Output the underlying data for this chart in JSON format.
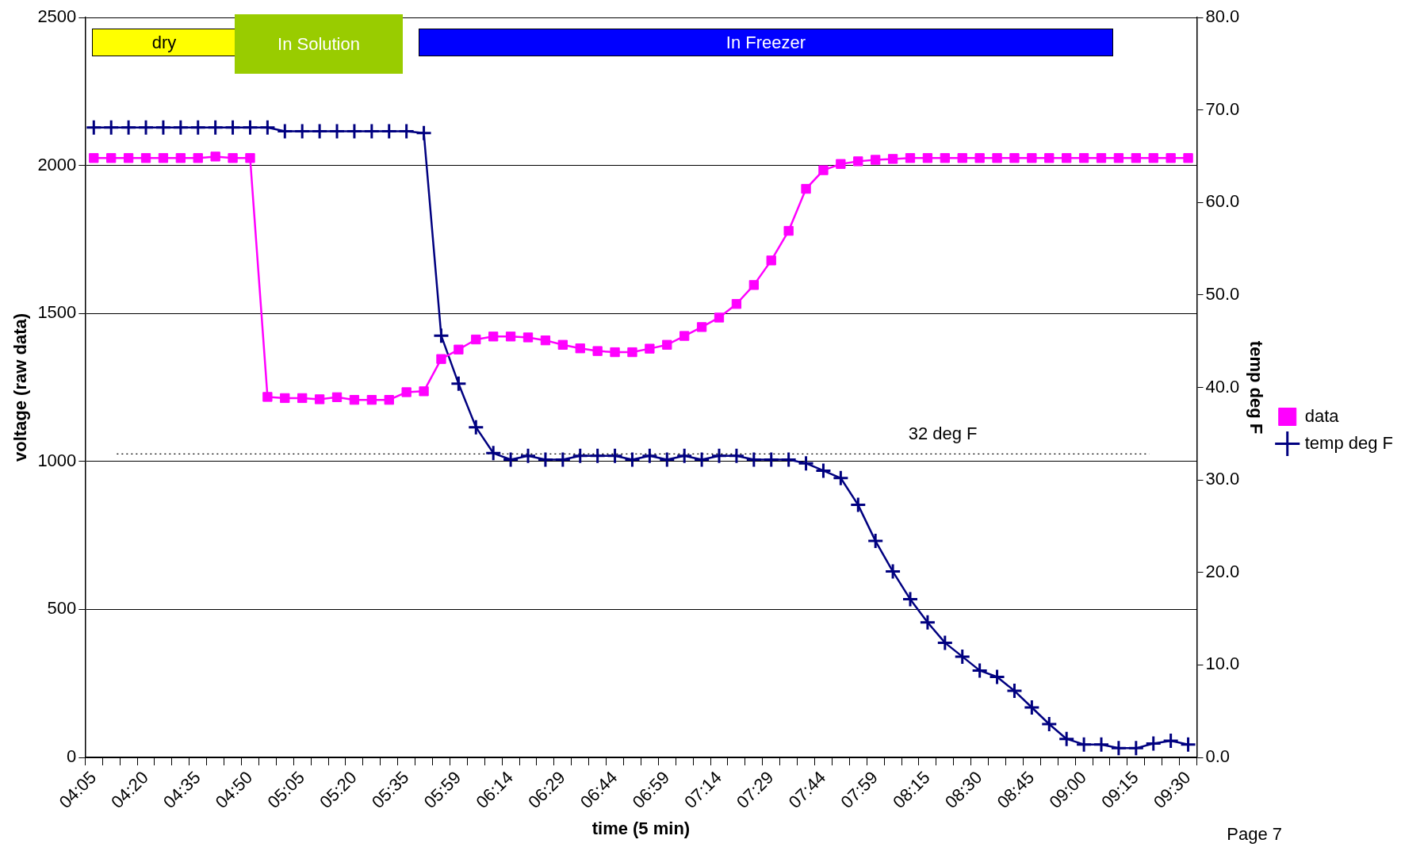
{
  "chart_data": {
    "type": "line",
    "xlabel": "time (5 min)",
    "ylabel": "voltage (raw data)",
    "y2label": "temp deg F",
    "categories": [
      "04:05",
      null,
      null,
      "04:20",
      null,
      null,
      "04:35",
      null,
      null,
      "04:50",
      null,
      null,
      "05:05",
      null,
      null,
      "05:20",
      null,
      null,
      "05:35",
      null,
      null,
      "05:59",
      null,
      null,
      "06:14",
      null,
      null,
      "06:29",
      null,
      null,
      "06:44",
      null,
      null,
      "06:59",
      null,
      null,
      "07:14",
      null,
      null,
      "07:29",
      null,
      null,
      "07:44",
      null,
      null,
      "07:59",
      null,
      null,
      "08:15",
      null,
      null,
      "08:30",
      null,
      null,
      "08:45",
      null,
      null,
      "09:00",
      null,
      null,
      "09:15",
      null,
      null,
      "09:30"
    ],
    "series": [
      {
        "name": "data",
        "color": "#ff00ff",
        "marker": "square",
        "values": [
          2025,
          2025,
          2025,
          2025,
          2025,
          2025,
          2025,
          2030,
          2025,
          2025,
          1218,
          1214,
          1214,
          1210,
          1217,
          1208,
          1208,
          1208,
          1234,
          1237,
          1346,
          1378,
          1412,
          1422,
          1422,
          1419,
          1409,
          1394,
          1382,
          1373,
          1369,
          1369,
          1381,
          1394,
          1424,
          1454,
          1486,
          1532,
          1596,
          1679,
          1779,
          1921,
          1984,
          2005,
          2014,
          2019,
          2022,
          2025,
          2025,
          2025,
          2025,
          2025,
          2025,
          2025,
          2025,
          2025,
          2025,
          2025,
          2025,
          2025,
          2025,
          2025,
          2025,
          2025
        ]
      },
      {
        "name": "temp deg F",
        "color": "#000080",
        "marker": "cross",
        "axis": "y2",
        "values": [
          68.1,
          68.1,
          68.1,
          68.1,
          68.1,
          68.1,
          68.1,
          68.1,
          68.1,
          68.1,
          68.1,
          67.7,
          67.7,
          67.7,
          67.7,
          67.7,
          67.7,
          67.7,
          67.7,
          67.5,
          45.6,
          40.4,
          35.7,
          32.9,
          32.2,
          32.6,
          32.2,
          32.2,
          32.6,
          32.6,
          32.6,
          32.2,
          32.6,
          32.2,
          32.6,
          32.2,
          32.6,
          32.6,
          32.2,
          32.2,
          32.2,
          31.8,
          31.0,
          30.2,
          27.3,
          23.4,
          20.1,
          17.1,
          14.6,
          12.4,
          10.9,
          9.4,
          8.7,
          7.2,
          5.4,
          3.6,
          2.0,
          1.4,
          1.4,
          1.0,
          1.0,
          1.5,
          1.8,
          1.4
        ]
      }
    ],
    "ylim": [
      0,
      2500
    ],
    "yticks": [
      0,
      500,
      1000,
      1500,
      2000,
      2500
    ],
    "y2lim": [
      0,
      80
    ],
    "y2ticks": [
      {
        "value": 0,
        "label": "0.0"
      },
      {
        "value": 10,
        "label": "10.0"
      },
      {
        "value": 20,
        "label": "20.0"
      },
      {
        "value": 30,
        "label": "30.0"
      },
      {
        "value": 40,
        "label": "40.0"
      },
      {
        "value": 50,
        "label": "50.0"
      },
      {
        "value": 60,
        "label": "60.0"
      },
      {
        "value": 70,
        "label": "70.0"
      },
      {
        "value": 80,
        "label": "80.0"
      }
    ],
    "ref_lines": [
      {
        "axis": "y2",
        "value": 32.8,
        "label": "32 deg F",
        "color": "#000000",
        "line_style": "dotted"
      }
    ],
    "annotations": [
      "dry",
      "In Solution",
      "In Freezer",
      "Page 7"
    ],
    "grid": "y",
    "legend": "right",
    "line_style": "solid"
  }
}
